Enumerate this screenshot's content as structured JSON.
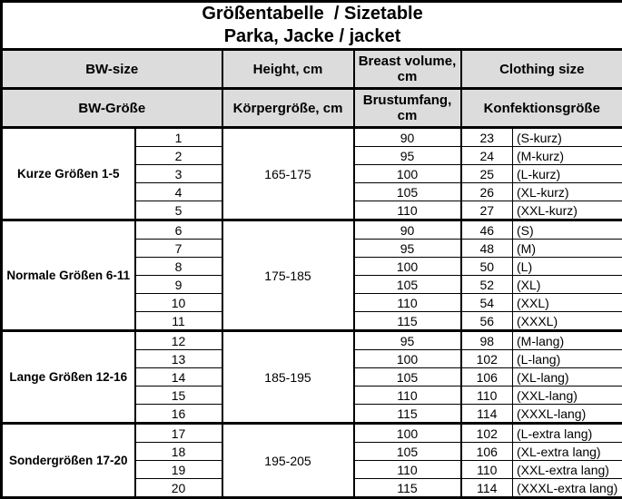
{
  "title": {
    "line1": "Größentabelle  / Sizetable",
    "line2": "Parka, Jacke / jacket"
  },
  "headers": {
    "en": {
      "bw": "BW-size",
      "height": "Height, cm",
      "breast": "Breast volume, cm",
      "clothing": "Clothing size"
    },
    "de": {
      "bw": "BW-Größe",
      "height": "Körpergröße, cm",
      "breast": "Brustumfang, cm",
      "clothing": "Konfektionsgröße"
    }
  },
  "colors": {
    "header_bg": "#dcdcdc",
    "border": "#000000",
    "background": "#ffffff"
  },
  "blocks": [
    {
      "label": "Kurze Größen 1-5",
      "height_range": "165-175",
      "rows": [
        {
          "size": "1",
          "breast": "90",
          "clothing": "23",
          "intl": "(S-kurz)"
        },
        {
          "size": "2",
          "breast": "95",
          "clothing": "24",
          "intl": "(M-kurz)"
        },
        {
          "size": "3",
          "breast": "100",
          "clothing": "25",
          "intl": "(L-kurz)"
        },
        {
          "size": "4",
          "breast": "105",
          "clothing": "26",
          "intl": "(XL-kurz)"
        },
        {
          "size": "5",
          "breast": "110",
          "clothing": "27",
          "intl": "(XXL-kurz)"
        }
      ]
    },
    {
      "label": "Normale Größen 6-11",
      "height_range": "175-185",
      "rows": [
        {
          "size": "6",
          "breast": "90",
          "clothing": "46",
          "intl": "(S)"
        },
        {
          "size": "7",
          "breast": "95",
          "clothing": "48",
          "intl": "(M)"
        },
        {
          "size": "8",
          "breast": "100",
          "clothing": "50",
          "intl": "(L)"
        },
        {
          "size": "9",
          "breast": "105",
          "clothing": "52",
          "intl": "(XL)"
        },
        {
          "size": "10",
          "breast": "110",
          "clothing": "54",
          "intl": "(XXL)"
        },
        {
          "size": "11",
          "breast": "115",
          "clothing": "56",
          "intl": "(XXXL)"
        }
      ]
    },
    {
      "label": "Lange Größen 12-16",
      "height_range": "185-195",
      "rows": [
        {
          "size": "12",
          "breast": "95",
          "clothing": "98",
          "intl": "(M-lang)"
        },
        {
          "size": "13",
          "breast": "100",
          "clothing": "102",
          "intl": "(L-lang)"
        },
        {
          "size": "14",
          "breast": "105",
          "clothing": "106",
          "intl": "(XL-lang)"
        },
        {
          "size": "15",
          "breast": "110",
          "clothing": "110",
          "intl": "(XXL-lang)"
        },
        {
          "size": "16",
          "breast": "115",
          "clothing": "114",
          "intl": "(XXXL-lang)"
        }
      ]
    },
    {
      "label": "Sondergrößen 17-20",
      "height_range": "195-205",
      "rows": [
        {
          "size": "17",
          "breast": "100",
          "clothing": "102",
          "intl": "(L-extra lang)"
        },
        {
          "size": "18",
          "breast": "105",
          "clothing": "106",
          "intl": "(XL-extra lang)"
        },
        {
          "size": "19",
          "breast": "110",
          "clothing": "110",
          "intl": "(XXL-extra lang)"
        },
        {
          "size": "20",
          "breast": "115",
          "clothing": "114",
          "intl": "(XXXL-extra lang)"
        }
      ]
    }
  ]
}
